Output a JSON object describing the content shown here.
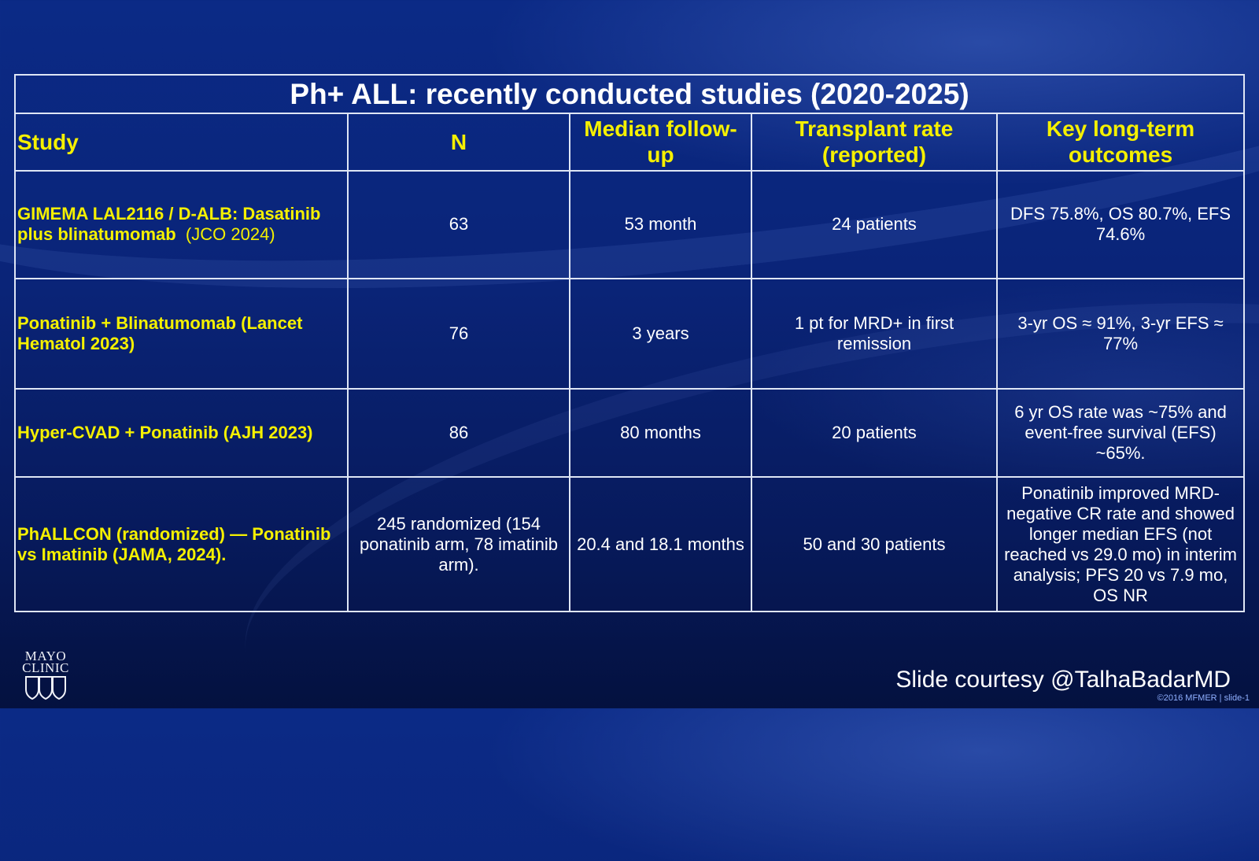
{
  "slide": {
    "title": "Ph+ ALL: recently conducted studies (2020-2025)",
    "headers": {
      "study": "Study",
      "n": "N",
      "followup": "Median follow-up",
      "transplant_line1": "Transplant rate",
      "transplant_line2": "(reported)",
      "outcomes_line1": "Key long-term",
      "outcomes_line2": "outcomes"
    },
    "rows": [
      {
        "study": "GIMEMA LAL2116 / D-ALB: Dasatinib plus blinatumomab",
        "journal": "(JCO 2024)",
        "n": "63",
        "followup": "53 month",
        "transplant": "24 patients",
        "outcomes": "DFS 75.8%, OS 80.7%, EFS 74.6%"
      },
      {
        "study": "Ponatinib + Blinatumomab (Lancet Hematol 2023)",
        "journal": "",
        "n": "76",
        "followup": "3 years",
        "transplant": "1 pt for MRD+ in first remission",
        "outcomes": "3-yr OS ≈ 91%, 3-yr EFS ≈ 77%"
      },
      {
        "study": "Hyper-CVAD + Ponatinib (AJH 2023)",
        "journal": "",
        "n": "86",
        "followup": "80 months",
        "transplant": "20 patients",
        "outcomes": "6 yr  OS rate was ~75% and event-free survival (EFS) ~65%."
      },
      {
        "study": "PhALLCON (randomized) — Ponatinib vs Imatinib (JAMA, 2024).",
        "journal": "",
        "n": "245 randomized (154 ponatinib arm, 78 imatinib arm).",
        "followup": "20.4 and 18.1 months",
        "transplant": "50 and 30 patients",
        "outcomes": "Ponatinib improved MRD-negative CR rate and showed longer median EFS (not reached vs 29.0 mo) in interim analysis; PFS 20 vs 7.9 mo, OS NR"
      }
    ]
  },
  "branding": {
    "logo_line1": "MAYO",
    "logo_line2": "CLINIC",
    "credit": "Slide courtesy @TalhaBadarMD",
    "copyright": "©2016 MFMER  |  slide-1"
  },
  "colors": {
    "background": "#0a2478",
    "header_text": "#f5f000",
    "body_text": "#ffffff",
    "grid": "#dfe6f5"
  }
}
